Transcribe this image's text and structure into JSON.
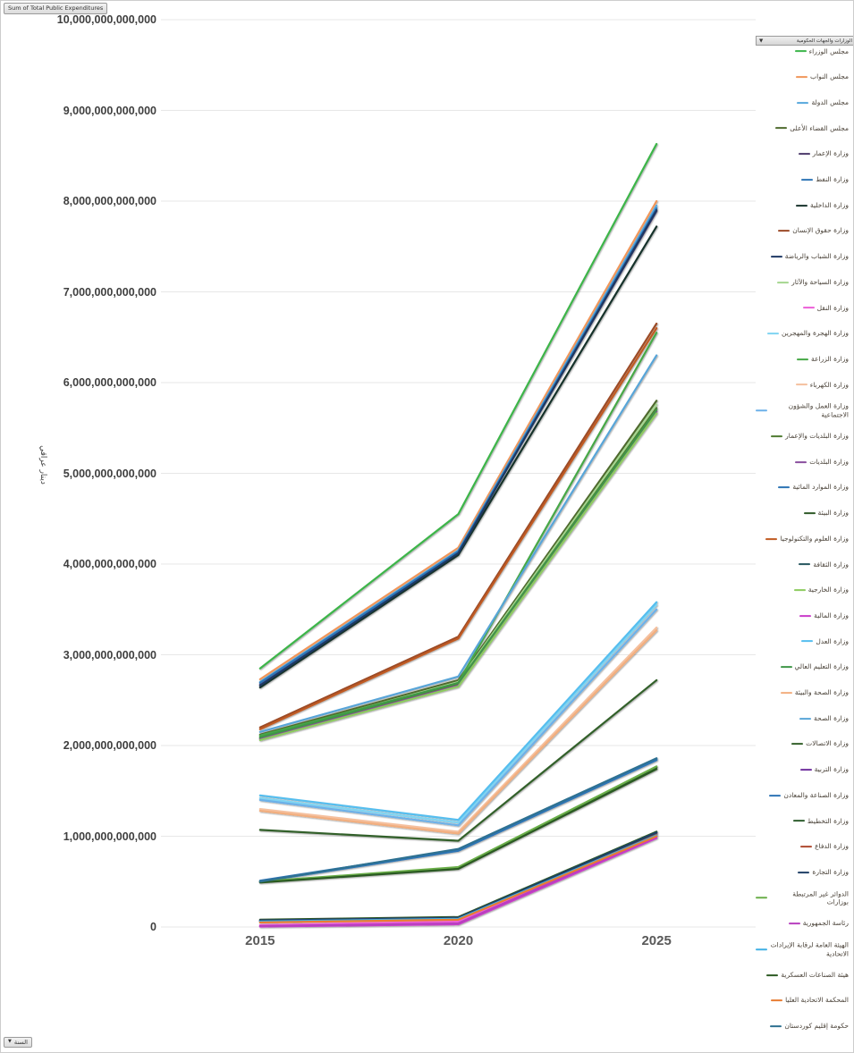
{
  "pivot_buttons": {
    "value_field": "Sum of Total Public Expenditures",
    "axis_field": "السنة",
    "legend_field": "الوزارات والجهات الحكومية",
    "dropdown_glyph": "▼"
  },
  "chart_data": {
    "type": "line",
    "title": "",
    "xlabel": "",
    "ylabel": "دينار عراقي",
    "legend_position": "right",
    "grid": true,
    "categories": [
      "2015",
      "2020",
      "2025"
    ],
    "ylim": [
      0,
      10000000000000
    ],
    "y_ticks": [
      {
        "label": "10,000,000,000,000",
        "value": 10000000000000
      },
      {
        "label": "9,000,000,000,000",
        "value": 9000000000000
      },
      {
        "label": "8,000,000,000,000",
        "value": 8000000000000
      },
      {
        "label": "7,000,000,000,000",
        "value": 7000000000000
      },
      {
        "label": "6,000,000,000,000",
        "value": 6000000000000
      },
      {
        "label": "5,000,000,000,000",
        "value": 5000000000000
      },
      {
        "label": "4,000,000,000,000",
        "value": 4000000000000
      },
      {
        "label": "3,000,000,000,000",
        "value": 3000000000000
      },
      {
        "label": "2,000,000,000,000",
        "value": 2000000000000
      },
      {
        "label": "1,000,000,000,000",
        "value": 1000000000000
      },
      {
        "label": "0",
        "value": 0
      }
    ],
    "series": [
      {
        "name": "مجلس الوزراء",
        "color": "#3cb54a",
        "values": [
          2850000000000,
          4550000000000,
          8630000000000
        ]
      },
      {
        "name": "مجلس النواب",
        "color": "#f0965a",
        "values": [
          2730000000000,
          4180000000000,
          8000000000000
        ]
      },
      {
        "name": "مجلس الدولة",
        "color": "#56a7dc",
        "values": [
          2700000000000,
          4150000000000,
          7950000000000
        ]
      },
      {
        "name": "مجلس القضاء الأعلى",
        "color": "#4f6b2e",
        "values": [
          2120000000000,
          2720000000000,
          5800000000000
        ]
      },
      {
        "name": "وزارة الإعمار",
        "color": "#4b3869",
        "values": [
          2670000000000,
          4130000000000,
          7890000000000
        ]
      },
      {
        "name": "وزارة النفط",
        "color": "#2e75b6",
        "values": [
          2690000000000,
          4140000000000,
          7920000000000
        ]
      },
      {
        "name": "وزارة الداخلية",
        "color": "#17322b",
        "values": [
          2640000000000,
          4100000000000,
          7720000000000
        ]
      },
      {
        "name": "وزارة حقوق الإنسان",
        "color": "#9c4b28",
        "values": [
          2200000000000,
          3200000000000,
          6650000000000
        ]
      },
      {
        "name": "وزارة الشباب والرياضة",
        "color": "#1f3864",
        "values": [
          2660000000000,
          4120000000000,
          7900000000000
        ]
      },
      {
        "name": "وزارة السياحة والآثار",
        "color": "#a4d68f",
        "values": [
          2100000000000,
          2700000000000,
          5760000000000
        ]
      },
      {
        "name": "وزارة النقل",
        "color": "#ec5fd8",
        "values": [
          20000000000,
          60000000000,
          1000000000000
        ]
      },
      {
        "name": "وزارة الهجرة والمهجرين",
        "color": "#7fd4f2",
        "values": [
          1420000000000,
          1150000000000,
          3550000000000
        ]
      },
      {
        "name": "وزارة الزراعة",
        "color": "#46a846",
        "values": [
          2110000000000,
          2690000000000,
          6550000000000
        ]
      },
      {
        "name": "وزارة الكهرباء",
        "color": "#f5c09e",
        "values": [
          1300000000000,
          1050000000000,
          3300000000000
        ]
      },
      {
        "name": "وزارة العمل والشؤون الاجتماعية",
        "color": "#6cb1e9",
        "values": [
          1400000000000,
          1120000000000,
          3500000000000
        ]
      },
      {
        "name": "وزارة البلديات والإعمار",
        "color": "#4f7b31",
        "values": [
          2080000000000,
          2680000000000,
          5720000000000
        ]
      },
      {
        "name": "وزارة البلديات",
        "color": "#8a4f9e",
        "values": [
          2070000000000,
          2660000000000,
          5680000000000
        ]
      },
      {
        "name": "وزارة الموارد المائية",
        "color": "#2c74b4",
        "values": [
          500000000000,
          840000000000,
          1840000000000
        ]
      },
      {
        "name": "وزارة البيئة",
        "color": "#2f5a28",
        "values": [
          80000000000,
          110000000000,
          1050000000000
        ]
      },
      {
        "name": "وزارة العلوم والتكنولوجيا",
        "color": "#c05a21",
        "values": [
          2180000000000,
          3180000000000,
          6600000000000
        ]
      },
      {
        "name": "وزارة الثقافة",
        "color": "#25555e",
        "values": [
          70000000000,
          100000000000,
          1040000000000
        ]
      },
      {
        "name": "وزارة الخارجية",
        "color": "#8ccb5e",
        "values": [
          2060000000000,
          2650000000000,
          5660000000000
        ]
      },
      {
        "name": "وزارة المالية",
        "color": "#ca3bca",
        "values": [
          5000000000,
          30000000000,
          980000000000
        ]
      },
      {
        "name": "وزارة العدل",
        "color": "#55beef",
        "values": [
          1450000000000,
          1180000000000,
          3580000000000
        ]
      },
      {
        "name": "وزارة التعليم العالي",
        "color": "#3f9647",
        "values": [
          2090000000000,
          2690000000000,
          5700000000000
        ]
      },
      {
        "name": "وزارة الصحة والبيئة",
        "color": "#f2ae7e",
        "values": [
          1280000000000,
          1030000000000,
          3270000000000
        ]
      },
      {
        "name": "وزارة الصحة",
        "color": "#58a5d8",
        "values": [
          2150000000000,
          2760000000000,
          6300000000000
        ]
      },
      {
        "name": "وزارة الاتصالات",
        "color": "#33602a",
        "values": [
          1070000000000,
          950000000000,
          2720000000000
        ]
      },
      {
        "name": "وزارة التربية",
        "color": "#70309e",
        "values": [
          70000000000,
          100000000000,
          1030000000000
        ]
      },
      {
        "name": "وزارة الصناعة والمعادن",
        "color": "#2e74b5",
        "values": [
          510000000000,
          850000000000,
          1850000000000
        ]
      },
      {
        "name": "وزارة التخطيط",
        "color": "#2f5e2f",
        "values": [
          500000000000,
          650000000000,
          1760000000000
        ]
      },
      {
        "name": "وزارة الدفاع",
        "color": "#af4a30",
        "values": [
          60000000000,
          90000000000,
          1020000000000
        ]
      },
      {
        "name": "وزارة التجارة",
        "color": "#1f3f66",
        "values": [
          70000000000,
          100000000000,
          1040000000000
        ]
      },
      {
        "name": "الدوائر غير المرتبطة بوزارات",
        "color": "#6aae49",
        "values": [
          500000000000,
          660000000000,
          1770000000000
        ]
      },
      {
        "name": "رئاسة الجمهورية",
        "color": "#b83fbf",
        "values": [
          10000000000,
          40000000000,
          1000000000000
        ]
      },
      {
        "name": "الهيئة العامة لرقابة الإيرادات الاتحادية",
        "color": "#3fafe4",
        "values": [
          60000000000,
          90000000000,
          1010000000000
        ]
      },
      {
        "name": "هيئة الصناعات العسكرية",
        "color": "#2c5a22",
        "values": [
          490000000000,
          640000000000,
          1740000000000
        ]
      },
      {
        "name": "المحكمة الاتحادية العليا",
        "color": "#e87d33",
        "values": [
          50000000000,
          80000000000,
          1000000000000
        ]
      },
      {
        "name": "حكومة إقليم كوردستان",
        "color": "#2f7191",
        "values": [
          500000000000,
          860000000000,
          1860000000000
        ]
      }
    ]
  },
  "style": {
    "gridline_color": "#e7e7e7",
    "axis_text_color": "#3f3f3f",
    "xlabel_color": "#595959"
  }
}
